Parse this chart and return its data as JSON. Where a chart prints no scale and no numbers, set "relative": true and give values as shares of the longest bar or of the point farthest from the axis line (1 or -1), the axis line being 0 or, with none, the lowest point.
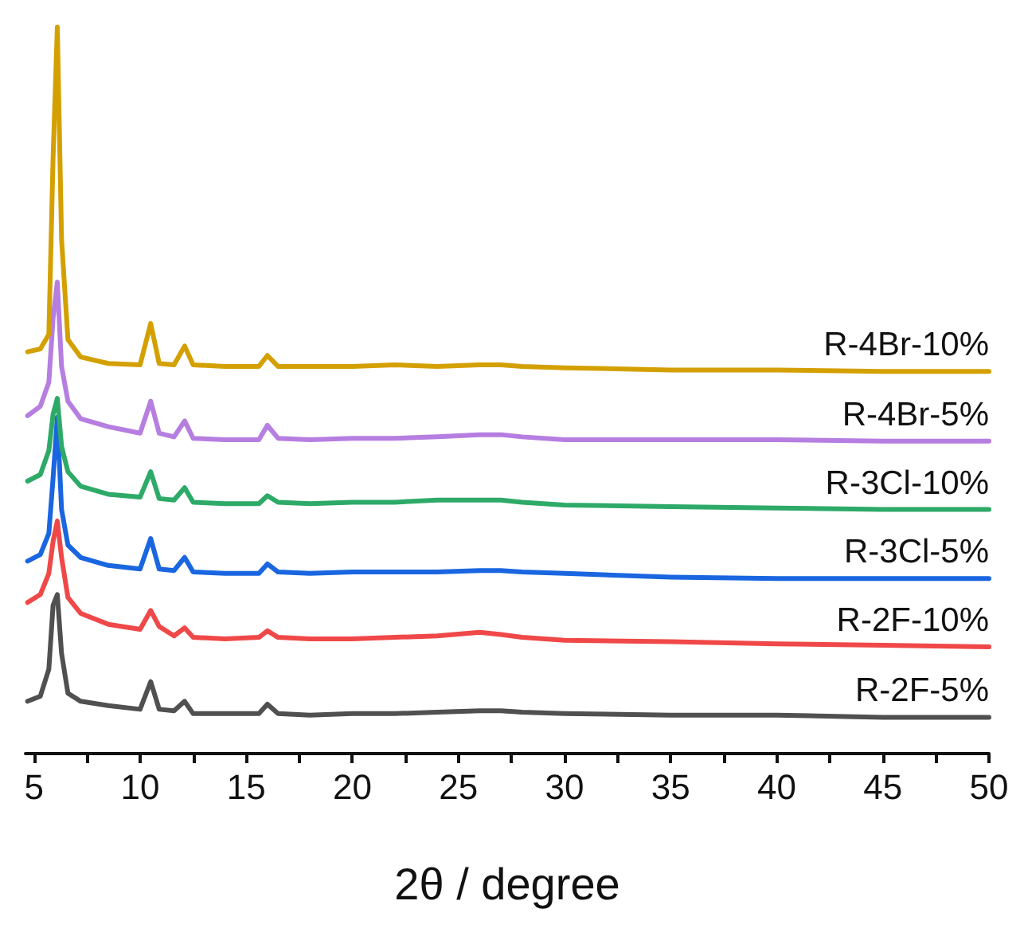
{
  "chart_data": {
    "type": "line",
    "xlabel": "2θ / degree",
    "relative": true,
    "legend": false,
    "grid": false,
    "marker": "none",
    "line_style": "solid",
    "xlim": [
      4.6,
      50
    ],
    "xticks": [
      5,
      {
        "value": 7.5,
        "label": null
      },
      10,
      {
        "value": 12.5,
        "label": null
      },
      15,
      {
        "value": 17.5,
        "label": null
      },
      20,
      {
        "value": 22.5,
        "label": null
      },
      25,
      {
        "value": 27.5,
        "label": null
      },
      30,
      {
        "value": 32.5,
        "label": null
      },
      35,
      {
        "value": 37.5,
        "label": null
      },
      40,
      {
        "value": 42.5,
        "label": null
      },
      45,
      {
        "value": 47.5,
        "label": null
      },
      50
    ],
    "x": [
      4.7,
      5.3,
      5.7,
      5.9,
      6.1,
      6.3,
      6.6,
      7.2,
      8.5,
      10.0,
      10.5,
      10.9,
      11.6,
      12.1,
      12.5,
      14,
      15.6,
      16.0,
      16.5,
      18,
      20,
      22,
      24,
      26,
      27,
      28,
      30,
      35,
      40,
      45,
      50
    ],
    "series": [
      {
        "name": "R-4Br-10%",
        "color": "#d4a000",
        "values": [
          0.553,
          0.557,
          0.577,
          0.82,
          1.0,
          0.708,
          0.57,
          0.546,
          0.537,
          0.535,
          0.592,
          0.537,
          0.535,
          0.561,
          0.535,
          0.533,
          0.533,
          0.548,
          0.533,
          0.533,
          0.533,
          0.535,
          0.533,
          0.535,
          0.535,
          0.533,
          0.531,
          0.528,
          0.528,
          0.526,
          0.526
        ]
      },
      {
        "name": "R-4Br-5%",
        "color": "#b57ee0",
        "values": [
          0.465,
          0.478,
          0.511,
          0.599,
          0.649,
          0.533,
          0.485,
          0.461,
          0.45,
          0.441,
          0.485,
          0.441,
          0.436,
          0.458,
          0.434,
          0.432,
          0.432,
          0.452,
          0.434,
          0.432,
          0.434,
          0.434,
          0.436,
          0.439,
          0.439,
          0.436,
          0.432,
          0.432,
          0.432,
          0.43,
          0.43
        ]
      },
      {
        "name": "R-3Cl-10%",
        "color": "#2eaa68",
        "values": [
          0.375,
          0.384,
          0.417,
          0.467,
          0.489,
          0.423,
          0.388,
          0.368,
          0.357,
          0.353,
          0.388,
          0.351,
          0.349,
          0.366,
          0.346,
          0.344,
          0.344,
          0.355,
          0.346,
          0.344,
          0.346,
          0.346,
          0.349,
          0.349,
          0.349,
          0.346,
          0.342,
          0.34,
          0.338,
          0.336,
          0.336
        ]
      },
      {
        "name": "R-3Cl-5%",
        "color": "#1a66e0",
        "values": [
          0.265,
          0.274,
          0.303,
          0.379,
          0.463,
          0.336,
          0.287,
          0.27,
          0.259,
          0.254,
          0.296,
          0.254,
          0.252,
          0.27,
          0.25,
          0.248,
          0.248,
          0.261,
          0.25,
          0.248,
          0.25,
          0.25,
          0.25,
          0.252,
          0.252,
          0.25,
          0.248,
          0.243,
          0.241,
          0.241,
          0.241
        ]
      },
      {
        "name": "R-2F-10%",
        "color": "#f04848",
        "values": [
          0.208,
          0.219,
          0.248,
          0.292,
          0.32,
          0.27,
          0.215,
          0.193,
          0.178,
          0.171,
          0.197,
          0.175,
          0.162,
          0.173,
          0.16,
          0.158,
          0.16,
          0.169,
          0.16,
          0.158,
          0.158,
          0.16,
          0.162,
          0.167,
          0.164,
          0.16,
          0.156,
          0.154,
          0.151,
          0.149,
          0.147
        ]
      },
      {
        "name": "R-2F-5%",
        "color": "#505050",
        "values": [
          0.072,
          0.079,
          0.116,
          0.204,
          0.219,
          0.138,
          0.083,
          0.072,
          0.066,
          0.061,
          0.099,
          0.061,
          0.059,
          0.072,
          0.055,
          0.055,
          0.055,
          0.068,
          0.055,
          0.053,
          0.055,
          0.055,
          0.057,
          0.059,
          0.059,
          0.057,
          0.055,
          0.053,
          0.053,
          0.05,
          0.05
        ]
      }
    ]
  }
}
